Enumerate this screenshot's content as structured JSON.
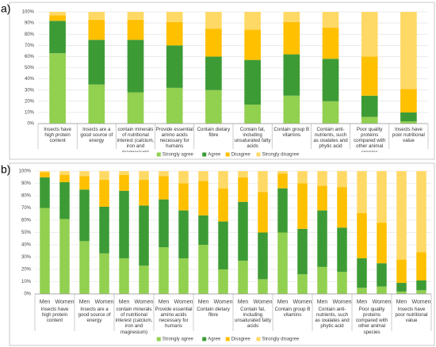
{
  "chart_data": [
    {
      "type": "bar",
      "stacked": true,
      "panel_label": "a)",
      "categories": [
        "Insects have high protein content",
        "Insects are a good source of energy",
        "contain minerals of nutritional interest (calcium, iron and magnesium)",
        "Provide essential amino acids necessary for humans",
        "Contain dietary fibre",
        "Contain fat, including unsaturated fatty acids",
        "Contain group B vitamins",
        "Contain anti-nutrients, such as oxalates and phytic acid",
        "Poor quality proteins compared with other animal species",
        "Insects have poor nutritional value"
      ],
      "series": [
        {
          "name": "Strongly agree",
          "color": "#92d050",
          "values": [
            63,
            35,
            28,
            32,
            30,
            17,
            25,
            20,
            6,
            2
          ]
        },
        {
          "name": "Agree",
          "color": "#3d9b35",
          "values": [
            29,
            40,
            47,
            38,
            30,
            40,
            37,
            38,
            19,
            8
          ]
        },
        {
          "name": "Disagree",
          "color": "#ffc000",
          "values": [
            5,
            18,
            18,
            21,
            25,
            27,
            29,
            28,
            35,
            21
          ]
        },
        {
          "name": "Strongly disagree",
          "color": "#ffd966",
          "values": [
            3,
            7,
            7,
            9,
            15,
            16,
            9,
            14,
            40,
            69
          ]
        }
      ],
      "ylim": [
        0,
        100
      ],
      "yticks": [
        {
          "value": 0,
          "label": "0%"
        },
        {
          "value": 10,
          "label": "10%"
        },
        {
          "value": 20,
          "label": "20%"
        },
        {
          "value": 30,
          "label": "30%"
        },
        {
          "value": 40,
          "label": "40%"
        },
        {
          "value": 50,
          "label": "50%"
        },
        {
          "value": 60,
          "label": "60%"
        },
        {
          "value": 70,
          "label": "70%"
        },
        {
          "value": 80,
          "label": "80%"
        },
        {
          "value": 90,
          "label": "90%"
        },
        {
          "value": 100,
          "label": "100%"
        }
      ],
      "grid": true,
      "legend": "bottom"
    },
    {
      "type": "bar",
      "stacked": true,
      "panel_label": "b)",
      "categories": [
        "Men",
        "Women",
        "Men",
        "Women",
        "Men",
        "Women",
        "Men",
        "Women",
        "Men",
        "Women",
        "Men",
        "Women",
        "Men",
        "Women",
        "Men",
        "Women",
        "Men",
        "Women",
        "Men",
        "Women"
      ],
      "groups": [
        "Insects have high protein content",
        "Insects are a good source of energy",
        "contain minerals of nutritional interest (calcium, iron and magnesium)",
        "Provide essential amino acids necessary for humans",
        "Contain dietary fibre",
        "Contain fat, including unsaturated fatty acids",
        "Contain group B vitamins",
        "Contain anti-nutrients, such as oxalates and phytic acid",
        "Poor quality proteins compared with other animal species",
        "Insects have poor nutritional value"
      ],
      "series": [
        {
          "name": "Strongly agree",
          "color": "#92d050",
          "values": [
            70,
            61,
            43,
            33,
            29,
            23,
            38,
            29,
            40,
            20,
            27,
            12,
            50,
            16,
            22,
            18,
            5,
            6,
            2,
            3
          ]
        },
        {
          "name": "Agree",
          "color": "#3d9b35",
          "values": [
            25,
            30,
            42,
            38,
            55,
            49,
            39,
            39,
            24,
            39,
            48,
            38,
            36,
            37,
            46,
            36,
            24,
            19,
            7,
            8
          ]
        },
        {
          "name": "Disagree",
          "color": "#ffc000",
          "values": [
            4,
            6,
            11,
            22,
            13,
            21,
            19,
            22,
            28,
            27,
            20,
            33,
            12,
            37,
            20,
            33,
            37,
            33,
            19,
            23
          ]
        },
        {
          "name": "Strongly disagree",
          "color": "#ffd966",
          "values": [
            1,
            3,
            4,
            7,
            3,
            7,
            4,
            10,
            8,
            14,
            5,
            17,
            2,
            10,
            12,
            13,
            34,
            42,
            72,
            66
          ]
        }
      ],
      "ylim": [
        0,
        100
      ],
      "yticks": [
        {
          "value": 0,
          "label": "0%"
        },
        {
          "value": 10,
          "label": "10%"
        },
        {
          "value": 20,
          "label": "20%"
        },
        {
          "value": 30,
          "label": "30%"
        },
        {
          "value": 40,
          "label": "40%"
        },
        {
          "value": 50,
          "label": "50%"
        },
        {
          "value": 60,
          "label": "60%"
        },
        {
          "value": 70,
          "label": "70%"
        },
        {
          "value": 80,
          "label": "80%"
        },
        {
          "value": 90,
          "label": "90%"
        },
        {
          "value": 100,
          "label": "100%"
        }
      ],
      "grid": true,
      "legend": "bottom"
    }
  ]
}
